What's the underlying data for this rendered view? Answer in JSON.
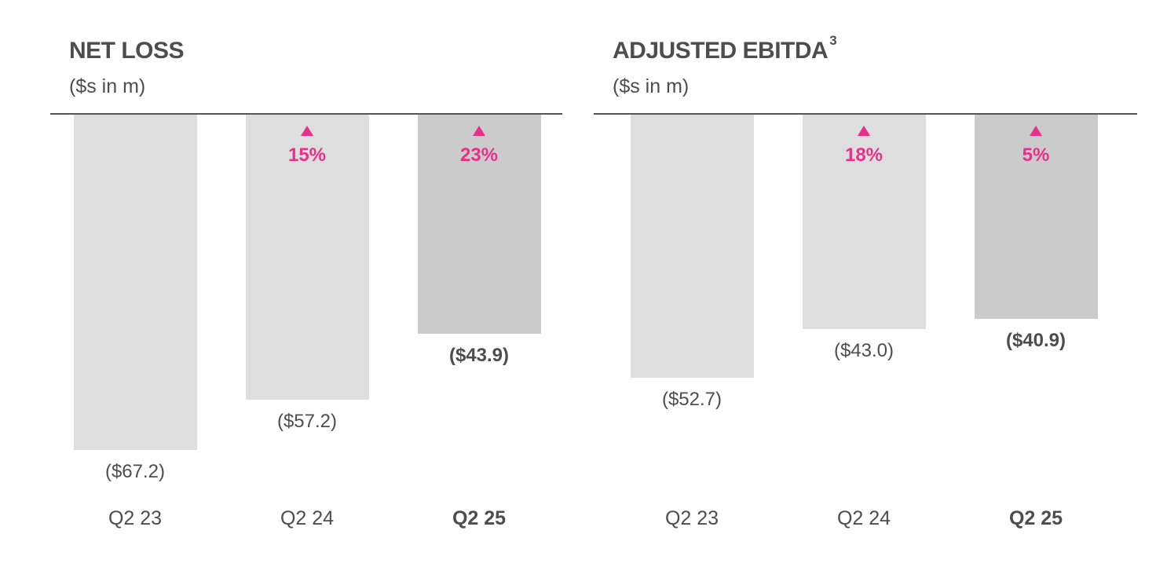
{
  "chart_data": [
    {
      "type": "bar",
      "title": "NET LOSS",
      "title_superscript": "",
      "subtitle": "($s in m)",
      "categories": [
        "Q2 23",
        "Q2 24",
        "Q2 25"
      ],
      "values": [
        -67.2,
        -57.2,
        -43.9
      ],
      "value_labels": [
        "($67.2)",
        "($57.2)",
        "($43.9)"
      ],
      "change_labels": [
        "",
        "15%",
        "23%"
      ],
      "highlight_index": 2,
      "ylim": [
        -80,
        0
      ]
    },
    {
      "type": "bar",
      "title": "ADJUSTED EBITDA",
      "title_superscript": "3",
      "subtitle": "($s in m)",
      "categories": [
        "Q2 23",
        "Q2 24",
        "Q2 25"
      ],
      "values": [
        -52.7,
        -43.0,
        -40.9
      ],
      "value_labels": [
        "($52.7)",
        "($43.0)",
        "($40.9)"
      ],
      "change_labels": [
        "",
        "18%",
        "5%"
      ],
      "highlight_index": 2,
      "ylim": [
        -80,
        0
      ]
    }
  ],
  "colors": {
    "bar": "#dedede",
    "bar_highlight": "#cbcbcb",
    "accent": "#e8308a",
    "text": "#4d4d4d",
    "baseline": "#555555"
  },
  "icons": {
    "change_indicator": "up-triangle-icon"
  }
}
